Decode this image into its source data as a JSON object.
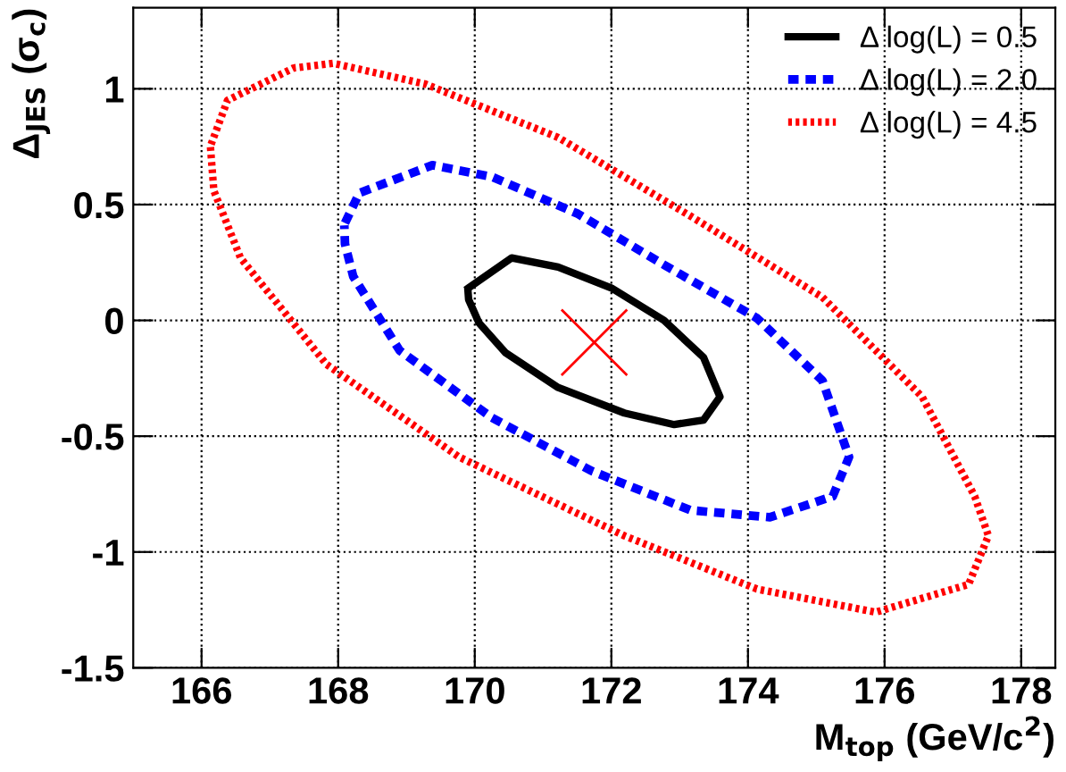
{
  "chart_data": {
    "type": "line",
    "xlabel": "M$_{top}$ (GeV/c$^{2}$)",
    "ylabel": "Δ$_{JES}$ (σ$_{c}$)",
    "xlim": [
      165,
      178.5
    ],
    "ylim": [
      -1.5,
      1.35
    ],
    "xticks": [
      166,
      168,
      170,
      172,
      174,
      176,
      178
    ],
    "yticks": [
      -1.5,
      -1,
      -0.5,
      0,
      0.5,
      1
    ],
    "grid": true,
    "legend": "top right",
    "series": [
      {
        "name": "Δ log(L) = 0.5",
        "color": "#000000",
        "line_style": "solid",
        "x": [
          169.91,
          170.54,
          171.22,
          172.0,
          172.77,
          173.35,
          173.59,
          173.35,
          172.92,
          172.19,
          171.22,
          170.45,
          170.06,
          169.91,
          169.9
        ],
        "values": [
          0.14,
          0.27,
          0.23,
          0.14,
          0.0,
          -0.16,
          -0.33,
          -0.43,
          -0.45,
          -0.4,
          -0.29,
          -0.14,
          -0.01,
          0.09,
          0.13
        ]
      },
      {
        "name": "Δ log(L) = 2.0",
        "color": "#0000ff",
        "line_style": "dashed",
        "x": [
          168.1,
          168.31,
          169.38,
          170.25,
          171.51,
          172.77,
          174.13,
          175.09,
          175.48,
          175.24,
          174.32,
          173.16,
          171.71,
          170.25,
          168.9,
          168.22,
          168.1,
          168.09
        ],
        "values": [
          0.42,
          0.55,
          0.67,
          0.62,
          0.46,
          0.24,
          0.01,
          -0.26,
          -0.59,
          -0.76,
          -0.85,
          -0.82,
          -0.65,
          -0.42,
          -0.13,
          0.19,
          0.33,
          0.41
        ]
      },
      {
        "name": "Δ log(L) = 4.5",
        "color": "#ff0000",
        "line_style": "dotted",
        "x": [
          166.14,
          166.38,
          167.35,
          167.93,
          169.28,
          171.22,
          173.16,
          175.09,
          176.55,
          177.32,
          177.52,
          177.23,
          175.87,
          174.13,
          172.19,
          169.77,
          167.83,
          166.57,
          166.18,
          166.13
        ],
        "values": [
          0.76,
          0.95,
          1.09,
          1.11,
          1.02,
          0.79,
          0.45,
          0.1,
          -0.33,
          -0.76,
          -0.93,
          -1.14,
          -1.26,
          -1.16,
          -0.93,
          -0.59,
          -0.19,
          0.27,
          0.56,
          0.75
        ]
      },
      {
        "type": "scatter",
        "marker": "cross",
        "color": "#ff0000",
        "x": [
          171.75
        ],
        "values": [
          -0.095
        ]
      }
    ]
  }
}
